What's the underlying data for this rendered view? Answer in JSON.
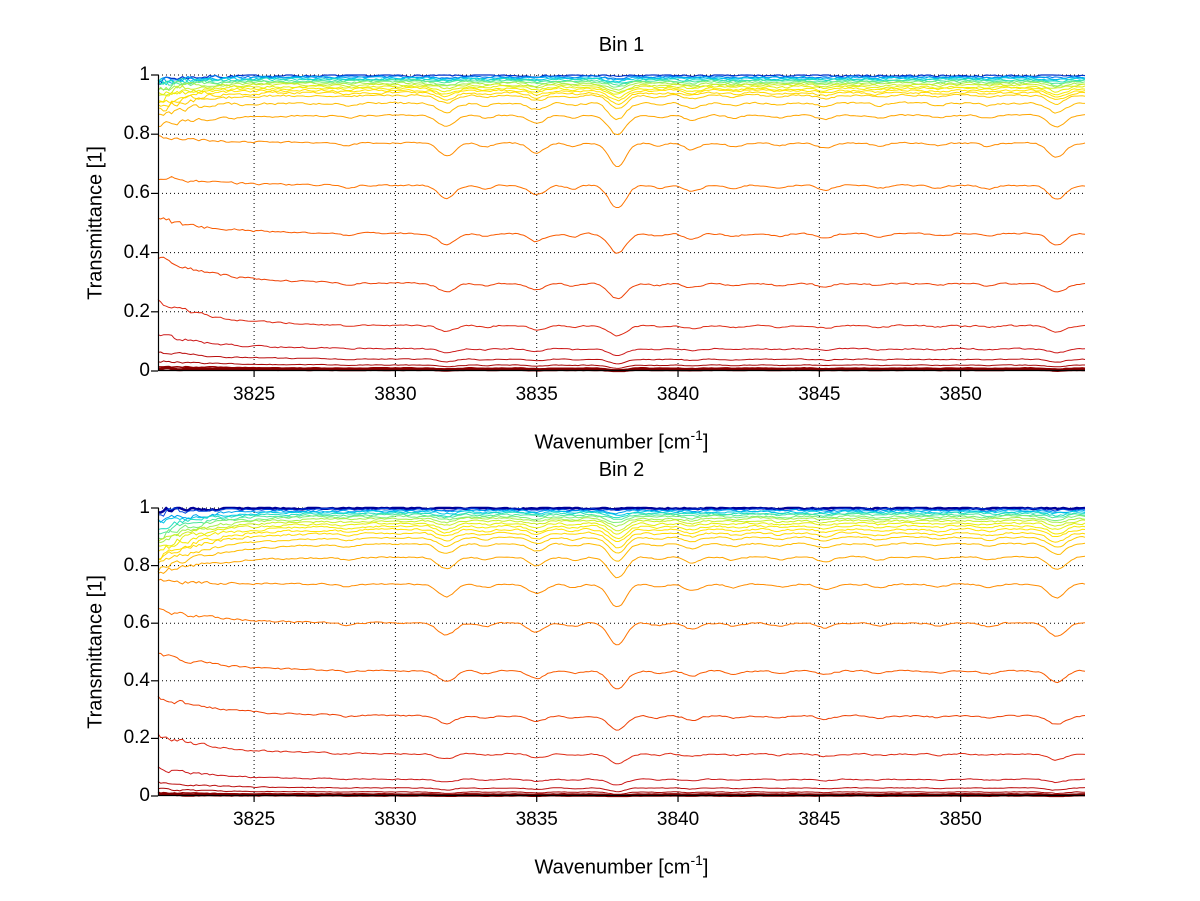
{
  "figure": {
    "background": "#ffffff"
  },
  "chart_data": [
    {
      "type": "line",
      "title": "Bin 1",
      "ylabel": "Transmittance [1]",
      "xlabel_parts": {
        "pre": "Wavenumber [cm",
        "sup": "-1",
        "post": "]"
      },
      "xlim": [
        3821.6,
        3854.4
      ],
      "ylim": [
        0,
        1
      ],
      "xticks": [
        3825,
        3830,
        3835,
        3840,
        3845,
        3850
      ],
      "xtick_labels": [
        "3825",
        "3830",
        "3835",
        "3840",
        "3845",
        "3850"
      ],
      "yticks": [
        0,
        0.2,
        0.4,
        0.6,
        0.8,
        1
      ],
      "ytick_labels": [
        "0",
        "0.2",
        "0.4",
        "0.6",
        "0.8",
        "1"
      ],
      "grid": "dotted",
      "grid_color": "#000000",
      "axis_color": "#000000",
      "colormap": "jet",
      "series": [
        {
          "level": 0.998,
          "left": 0.984,
          "color": "#0033CC",
          "lw": 1.2
        },
        {
          "level": 0.994,
          "left": 0.981,
          "color": "#0077EE",
          "lw": 1
        },
        {
          "level": 0.991,
          "left": 0.978,
          "color": "#00AAEE",
          "lw": 1
        },
        {
          "level": 0.988,
          "left": 0.974,
          "color": "#00CCE6",
          "lw": 1
        },
        {
          "level": 0.985,
          "left": 0.97,
          "color": "#1FDDC1",
          "lw": 1
        },
        {
          "level": 0.981,
          "left": 0.965,
          "color": "#4DE69E",
          "lw": 1
        },
        {
          "level": 0.977,
          "left": 0.958,
          "color": "#7BEE77",
          "lw": 1
        },
        {
          "level": 0.972,
          "left": 0.95,
          "color": "#A8EE4D",
          "lw": 1
        },
        {
          "level": 0.967,
          "left": 0.941,
          "color": "#CCEE26",
          "lw": 1
        },
        {
          "level": 0.961,
          "left": 0.931,
          "color": "#E6EE0D",
          "lw": 1
        },
        {
          "level": 0.955,
          "left": 0.92,
          "color": "#F6EA00",
          "lw": 1
        },
        {
          "level": 0.948,
          "left": 0.908,
          "color": "#FFE200",
          "lw": 1
        },
        {
          "level": 0.94,
          "left": 0.895,
          "color": "#FFD800",
          "lw": 1
        },
        {
          "level": 0.931,
          "left": 0.88,
          "color": "#FFCC00",
          "lw": 1
        },
        {
          "level": 0.905,
          "left": 0.858,
          "color": "#FFBB00",
          "lw": 1
        },
        {
          "level": 0.864,
          "left": 0.832,
          "color": "#FFA500",
          "lw": 1
        },
        {
          "level": 0.77,
          "left": 0.79,
          "color": "#FF8C00",
          "lw": 1
        },
        {
          "level": 0.627,
          "left": 0.655,
          "color": "#FF7300",
          "lw": 1
        },
        {
          "level": 0.464,
          "left": 0.512,
          "color": "#F95B00",
          "lw": 1
        },
        {
          "level": 0.295,
          "left": 0.382,
          "color": "#EE4206",
          "lw": 1
        },
        {
          "level": 0.153,
          "left": 0.232,
          "color": "#DE2B14",
          "lw": 1
        },
        {
          "level": 0.075,
          "left": 0.122,
          "color": "#CC1A1A",
          "lw": 1
        },
        {
          "level": 0.04,
          "left": 0.065,
          "color": "#BA0D0D",
          "lw": 1
        },
        {
          "level": 0.02,
          "left": 0.034,
          "color": "#A80505",
          "lw": 1
        },
        {
          "level": 0.01,
          "left": 0.016,
          "color": "#960101",
          "lw": 1.5
        },
        {
          "level": 0.005,
          "left": 0.008,
          "color": "#850000",
          "lw": 3
        }
      ],
      "dips": [
        {
          "wn": 3828.3,
          "s": 0.12,
          "w": 0.25
        },
        {
          "wn": 3831.8,
          "s": 0.55,
          "w": 0.3
        },
        {
          "wn": 3833.2,
          "s": 0.15,
          "w": 0.22
        },
        {
          "wn": 3835.0,
          "s": 0.4,
          "w": 0.28
        },
        {
          "wn": 3836.3,
          "s": 0.15,
          "w": 0.22
        },
        {
          "wn": 3837.85,
          "s": 1.0,
          "w": 0.3
        },
        {
          "wn": 3839.3,
          "s": 0.12,
          "w": 0.22
        },
        {
          "wn": 3840.5,
          "s": 0.28,
          "w": 0.26
        },
        {
          "wn": 3842.0,
          "s": 0.15,
          "w": 0.24
        },
        {
          "wn": 3843.6,
          "s": 0.12,
          "w": 0.24
        },
        {
          "wn": 3845.2,
          "s": 0.22,
          "w": 0.26
        },
        {
          "wn": 3847.1,
          "s": 0.14,
          "w": 0.24
        },
        {
          "wn": 3849.2,
          "s": 0.12,
          "w": 0.24
        },
        {
          "wn": 3851.0,
          "s": 0.16,
          "w": 0.24
        },
        {
          "wn": 3853.4,
          "s": 0.6,
          "w": 0.3
        }
      ]
    },
    {
      "type": "line",
      "title": "Bin 2",
      "ylabel": "Transmittance [1]",
      "xlabel_parts": {
        "pre": "Wavenumber [cm",
        "sup": "-1",
        "post": "]"
      },
      "xlim": [
        3821.6,
        3854.4
      ],
      "ylim": [
        0,
        1
      ],
      "xticks": [
        3825,
        3830,
        3835,
        3840,
        3845,
        3850
      ],
      "xtick_labels": [
        "3825",
        "3830",
        "3835",
        "3840",
        "3845",
        "3850"
      ],
      "yticks": [
        0,
        0.2,
        0.4,
        0.6,
        0.8,
        1
      ],
      "ytick_labels": [
        "0",
        "0.2",
        "0.4",
        "0.6",
        "0.8",
        "1"
      ],
      "grid": "dotted",
      "grid_color": "#000000",
      "axis_color": "#000000",
      "colormap": "jet",
      "series": [
        {
          "level": 0.999,
          "left": 0.997,
          "color": "#000099",
          "lw": 2.5
        },
        {
          "level": 0.995,
          "left": 0.986,
          "color": "#0044DD",
          "lw": 1
        },
        {
          "level": 0.991,
          "left": 0.956,
          "color": "#00A0EE",
          "lw": 1
        },
        {
          "level": 0.987,
          "left": 0.944,
          "color": "#00C8E6",
          "lw": 1
        },
        {
          "level": 0.982,
          "left": 0.93,
          "color": "#1FDDC1",
          "lw": 1
        },
        {
          "level": 0.977,
          "left": 0.916,
          "color": "#4DE69E",
          "lw": 1
        },
        {
          "level": 0.971,
          "left": 0.902,
          "color": "#7BEE77",
          "lw": 1
        },
        {
          "level": 0.964,
          "left": 0.888,
          "color": "#A8EE4D",
          "lw": 1
        },
        {
          "level": 0.956,
          "left": 0.874,
          "color": "#CCEE26",
          "lw": 1
        },
        {
          "level": 0.947,
          "left": 0.86,
          "color": "#E6EE0D",
          "lw": 1
        },
        {
          "level": 0.937,
          "left": 0.846,
          "color": "#F6EA00",
          "lw": 1
        },
        {
          "level": 0.926,
          "left": 0.833,
          "color": "#FFE200",
          "lw": 1
        },
        {
          "level": 0.913,
          "left": 0.819,
          "color": "#FFD800",
          "lw": 1
        },
        {
          "level": 0.898,
          "left": 0.804,
          "color": "#FFCC00",
          "lw": 1
        },
        {
          "level": 0.876,
          "left": 0.786,
          "color": "#FFBB00",
          "lw": 1
        },
        {
          "level": 0.83,
          "left": 0.776,
          "color": "#FFA500",
          "lw": 1
        },
        {
          "level": 0.735,
          "left": 0.748,
          "color": "#FF8C00",
          "lw": 1
        },
        {
          "level": 0.6,
          "left": 0.648,
          "color": "#FF7300",
          "lw": 1
        },
        {
          "level": 0.434,
          "left": 0.495,
          "color": "#F95B00",
          "lw": 1
        },
        {
          "level": 0.278,
          "left": 0.347,
          "color": "#EE4206",
          "lw": 1
        },
        {
          "level": 0.146,
          "left": 0.212,
          "color": "#DE2B14",
          "lw": 1
        },
        {
          "level": 0.058,
          "left": 0.096,
          "color": "#CC1A1A",
          "lw": 1
        },
        {
          "level": 0.028,
          "left": 0.046,
          "color": "#BA0D0D",
          "lw": 1
        },
        {
          "level": 0.014,
          "left": 0.023,
          "color": "#A80505",
          "lw": 1
        },
        {
          "level": 0.007,
          "left": 0.011,
          "color": "#960101",
          "lw": 1.5
        },
        {
          "level": 0.003,
          "left": 0.005,
          "color": "#850000",
          "lw": 3
        }
      ],
      "dips": [
        {
          "wn": 3828.3,
          "s": 0.12,
          "w": 0.25
        },
        {
          "wn": 3831.8,
          "s": 0.55,
          "w": 0.3
        },
        {
          "wn": 3833.2,
          "s": 0.15,
          "w": 0.22
        },
        {
          "wn": 3835.0,
          "s": 0.4,
          "w": 0.28
        },
        {
          "wn": 3836.3,
          "s": 0.15,
          "w": 0.22
        },
        {
          "wn": 3837.85,
          "s": 1.0,
          "w": 0.3
        },
        {
          "wn": 3839.3,
          "s": 0.12,
          "w": 0.22
        },
        {
          "wn": 3840.5,
          "s": 0.28,
          "w": 0.26
        },
        {
          "wn": 3842.0,
          "s": 0.15,
          "w": 0.24
        },
        {
          "wn": 3843.6,
          "s": 0.12,
          "w": 0.24
        },
        {
          "wn": 3845.2,
          "s": 0.22,
          "w": 0.26
        },
        {
          "wn": 3847.1,
          "s": 0.14,
          "w": 0.24
        },
        {
          "wn": 3849.2,
          "s": 0.12,
          "w": 0.24
        },
        {
          "wn": 3851.0,
          "s": 0.16,
          "w": 0.24
        },
        {
          "wn": 3853.4,
          "s": 0.6,
          "w": 0.3
        }
      ]
    }
  ]
}
